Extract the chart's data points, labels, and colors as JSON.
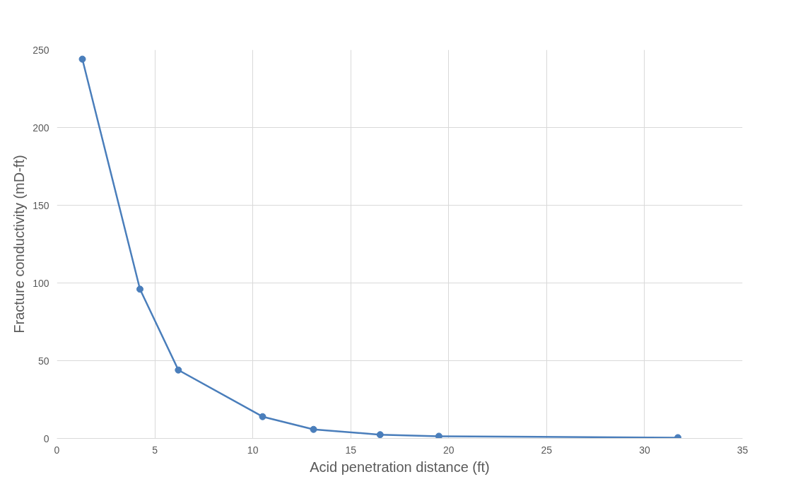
{
  "chart_data": {
    "type": "line",
    "xlabel": "Acid penetration distance (ft)",
    "ylabel": "Fracture conductivity (mD-ft)",
    "x": [
      1.3,
      4.24,
      6.2,
      10.5,
      13.1,
      16.5,
      19.5,
      31.7
    ],
    "series": [
      {
        "color": "#4a7ebb",
        "values": [
          244,
          96,
          44,
          14,
          5.8,
          2.4,
          1.4,
          0.5
        ]
      }
    ],
    "xlim": [
      0,
      35
    ],
    "xticks": [
      0,
      5,
      10,
      15,
      20,
      25,
      30,
      35
    ],
    "ylim": [
      0,
      250
    ],
    "yticks": [
      0,
      50,
      100,
      150,
      200,
      250
    ],
    "grid": true,
    "marker": "circle",
    "line_style": "solid"
  }
}
